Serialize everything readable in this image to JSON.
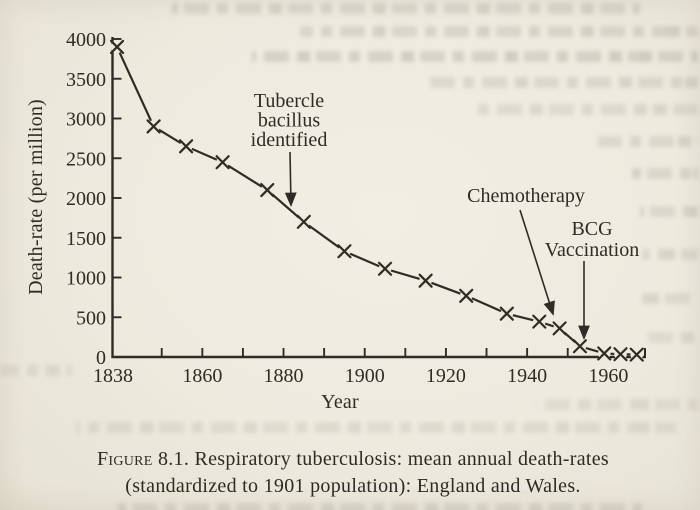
{
  "page": {
    "background_color": "#edeade",
    "ink_color": "#2f2c25"
  },
  "chart_data": {
    "type": "line",
    "title": "",
    "xlabel": "Year",
    "ylabel": "Death-rate (per million)",
    "marker": "x",
    "grid": false,
    "xlim": [
      1838,
      1970
    ],
    "ylim": [
      0,
      4000
    ],
    "x_ticks_labeled": [
      1838,
      1860,
      1880,
      1900,
      1920,
      1940,
      1960
    ],
    "x_ticks_minor": [
      1850,
      1870,
      1890,
      1910,
      1930,
      1950
    ],
    "y_ticks": [
      0,
      500,
      1000,
      1500,
      2000,
      2500,
      3000,
      3500,
      4000
    ],
    "series": [
      {
        "name": "Respiratory tuberculosis mean annual death-rate",
        "points": [
          {
            "year": 1839,
            "value": 3900
          },
          {
            "year": 1848,
            "value": 2900
          },
          {
            "year": 1856,
            "value": 2650
          },
          {
            "year": 1865,
            "value": 2450
          },
          {
            "year": 1876,
            "value": 2100
          },
          {
            "year": 1885,
            "value": 1700
          },
          {
            "year": 1895,
            "value": 1330
          },
          {
            "year": 1905,
            "value": 1110
          },
          {
            "year": 1915,
            "value": 960
          },
          {
            "year": 1925,
            "value": 770
          },
          {
            "year": 1935,
            "value": 545
          },
          {
            "year": 1943,
            "value": 445
          },
          {
            "year": 1948,
            "value": 360
          },
          {
            "year": 1953,
            "value": 135
          },
          {
            "year": 1959,
            "value": 45
          },
          {
            "year": 1963,
            "value": 35
          },
          {
            "year": 1967,
            "value": 30
          }
        ]
      }
    ],
    "annotations": [
      {
        "lines": [
          "Tubercle",
          "bacillus",
          "identified"
        ],
        "target_year": 1882
      },
      {
        "lines": [
          "Chemotherapy"
        ],
        "target_year": 1948
      },
      {
        "lines": [
          "BCG",
          "Vaccination"
        ],
        "target_year": 1953
      }
    ]
  },
  "caption": {
    "figure_label": "Figure 8.1.",
    "line1_rest": " Respiratory tuberculosis: mean annual death-rates",
    "line2": "(standardized to 1901 population): England and Wales."
  }
}
